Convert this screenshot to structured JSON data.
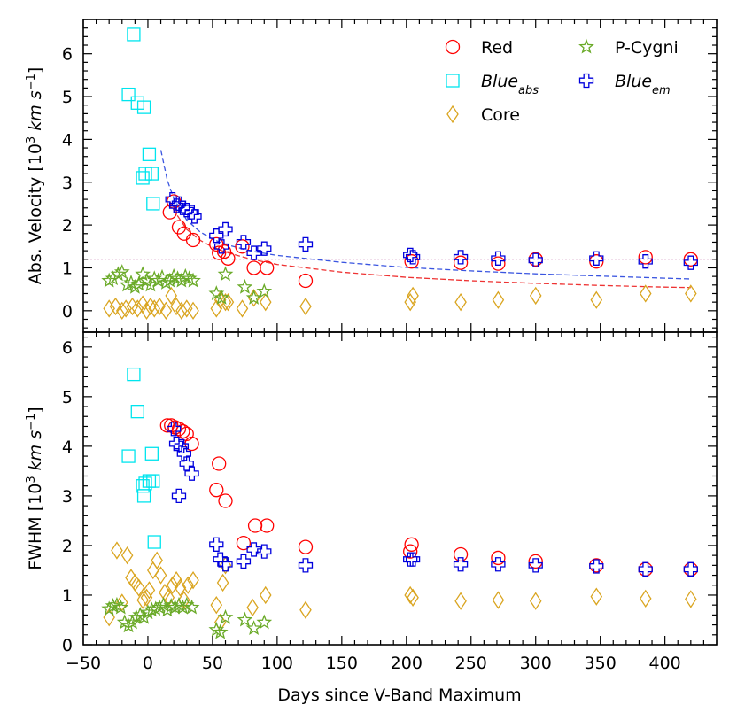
{
  "chart_data": [
    {
      "type": "scatter",
      "panel": "top",
      "ylabel": "Abs. Velocity [10³ km s⁻¹]",
      "ylabel_parts": {
        "pre": "Abs. Velocity [10",
        "exp1": "3",
        "mid": " km s",
        "exp2": "−1",
        "post": "]"
      },
      "xlim": [
        -50,
        440
      ],
      "ylim": [
        -0.5,
        6.8
      ],
      "y_ticks": [
        0,
        1,
        2,
        3,
        4,
        5,
        6
      ],
      "reference_line_y": 1.2,
      "series": [
        {
          "name": "Red",
          "color": "#ff0000",
          "marker": "circle",
          "x": [
            17,
            20,
            24,
            28,
            35,
            53,
            55,
            59,
            62,
            73,
            82,
            92,
            122,
            204,
            242,
            271,
            300,
            347,
            385,
            420
          ],
          "y": [
            2.3,
            2.55,
            1.95,
            1.8,
            1.65,
            1.55,
            1.35,
            1.38,
            1.22,
            1.5,
            1.0,
            1.0,
            0.7,
            1.15,
            1.12,
            1.1,
            1.2,
            1.15,
            1.25,
            1.2
          ]
        },
        {
          "name": "Blue_abs",
          "color": "#00e5ee",
          "marker": "square",
          "x": [
            -11,
            -15,
            -8,
            -3,
            -4,
            -2,
            1,
            3,
            4
          ],
          "y": [
            6.45,
            5.05,
            4.85,
            4.75,
            3.1,
            3.2,
            3.65,
            3.2,
            2.5
          ]
        },
        {
          "name": "Core",
          "color": "#daa520",
          "marker": "diamond",
          "x": [
            -30,
            -25,
            -20,
            -17,
            -12,
            -8,
            -4,
            -1,
            2,
            5,
            9,
            14,
            18,
            22,
            26,
            30,
            35,
            53,
            56,
            60,
            62,
            73,
            82,
            91,
            122,
            203,
            205,
            242,
            271,
            300,
            347,
            385,
            420
          ],
          "y": [
            0.05,
            0.1,
            0.0,
            0.05,
            0.1,
            0.05,
            0.15,
            0.0,
            0.1,
            0.05,
            0.1,
            0.0,
            0.35,
            0.1,
            0.0,
            0.05,
            0.0,
            0.05,
            0.25,
            0.2,
            0.2,
            0.05,
            0.3,
            0.2,
            0.1,
            0.2,
            0.35,
            0.2,
            0.25,
            0.35,
            0.25,
            0.4,
            0.4
          ]
        },
        {
          "name": "P-Cygni",
          "color": "#6aaa28",
          "marker": "star",
          "x": [
            -30,
            -27,
            -23,
            -20,
            -16,
            -13,
            -10,
            -7,
            -4,
            -1,
            2,
            5,
            8,
            11,
            14,
            17,
            20,
            23,
            26,
            29,
            32,
            35,
            53,
            57,
            60,
            75,
            82,
            90
          ],
          "y": [
            0.7,
            0.75,
            0.85,
            0.9,
            0.6,
            0.65,
            0.55,
            0.62,
            0.85,
            0.7,
            0.6,
            0.75,
            0.7,
            0.78,
            0.65,
            0.7,
            0.8,
            0.75,
            0.7,
            0.8,
            0.75,
            0.7,
            0.4,
            0.3,
            0.85,
            0.55,
            0.3,
            0.45
          ]
        },
        {
          "name": "Blue_em",
          "color": "#0000dd",
          "marker": "plus",
          "x": [
            19,
            22,
            24,
            27,
            30,
            34,
            36,
            53,
            57,
            60,
            74,
            82,
            90,
            122,
            203,
            205,
            242,
            271,
            300,
            347,
            385,
            420
          ],
          "y": [
            2.6,
            2.45,
            2.5,
            2.4,
            2.35,
            2.3,
            2.2,
            1.75,
            1.5,
            1.9,
            1.6,
            1.35,
            1.45,
            1.55,
            1.3,
            1.25,
            1.25,
            1.22,
            1.18,
            1.22,
            1.15,
            1.12
          ]
        }
      ],
      "fit_curves": [
        {
          "name": "Blue_em fit",
          "color": "#3a55e0",
          "x": [
            10,
            15,
            20,
            30,
            40,
            50,
            60,
            80,
            100,
            150,
            200,
            250,
            300,
            350,
            400,
            420
          ],
          "y": [
            3.75,
            3.05,
            2.62,
            2.12,
            1.85,
            1.67,
            1.55,
            1.39,
            1.29,
            1.13,
            1.01,
            0.93,
            0.86,
            0.81,
            0.76,
            0.74
          ]
        },
        {
          "name": "Red fit",
          "color": "#ee3333",
          "x": [
            17,
            20,
            30,
            40,
            50,
            60,
            80,
            100,
            150,
            200,
            250,
            300,
            350,
            400,
            420
          ],
          "y": [
            2.55,
            2.35,
            1.9,
            1.65,
            1.49,
            1.37,
            1.2,
            1.08,
            0.9,
            0.78,
            0.7,
            0.64,
            0.59,
            0.55,
            0.54
          ]
        }
      ],
      "legend": [
        {
          "key": "red",
          "label": "Red"
        },
        {
          "key": "blue_abs",
          "label_main": "Blue",
          "label_sub": "abs"
        },
        {
          "key": "core",
          "label": "Core"
        },
        {
          "key": "pcygni",
          "label": "P-Cygni"
        },
        {
          "key": "blue_em",
          "label_main": "Blue",
          "label_sub": "em"
        }
      ]
    },
    {
      "type": "scatter",
      "panel": "bottom",
      "ylabel": "FWHM [10³ km s⁻¹]",
      "ylabel_parts": {
        "pre": "FWHM [10",
        "exp1": "3",
        "mid": " km s",
        "exp2": "−1",
        "post": "]"
      },
      "xlabel": "Days since V-Band Maximum",
      "xlim": [
        -50,
        440
      ],
      "ylim": [
        0,
        6.3
      ],
      "x_ticks": [
        -50,
        0,
        50,
        100,
        150,
        200,
        250,
        300,
        350,
        400
      ],
      "y_ticks": [
        0,
        1,
        2,
        3,
        4,
        5,
        6
      ],
      "series": [
        {
          "name": "Red",
          "color": "#ff0000",
          "marker": "circle",
          "x": [
            15,
            18,
            21,
            24,
            27,
            30,
            34,
            53,
            55,
            60,
            74,
            83,
            92,
            122,
            203,
            204,
            242,
            271,
            300,
            347,
            385,
            420
          ],
          "y": [
            4.42,
            4.42,
            4.38,
            4.35,
            4.3,
            4.25,
            4.05,
            3.12,
            3.65,
            2.9,
            2.05,
            2.4,
            2.4,
            1.97,
            1.88,
            2.02,
            1.82,
            1.75,
            1.68,
            1.6,
            1.52,
            1.52
          ]
        },
        {
          "name": "Blue_abs",
          "color": "#00e5ee",
          "marker": "square",
          "x": [
            -11,
            -15,
            -8,
            -3,
            -4,
            -2,
            1,
            3,
            4,
            5
          ],
          "y": [
            5.45,
            3.8,
            4.7,
            3.0,
            3.2,
            3.25,
            3.3,
            3.85,
            3.3,
            2.07
          ]
        },
        {
          "name": "Core",
          "color": "#daa520",
          "marker": "diamond",
          "x": [
            -30,
            -24,
            -20,
            -16,
            -13,
            -10,
            -7,
            -4,
            -1,
            1,
            4,
            7,
            10,
            13,
            16,
            19,
            22,
            25,
            28,
            31,
            35,
            53,
            56,
            58,
            60,
            81,
            91,
            122,
            203,
            205,
            242,
            271,
            300,
            347,
            385,
            420
          ],
          "y": [
            0.55,
            1.9,
            0.85,
            1.8,
            1.35,
            1.25,
            1.15,
            0.9,
            0.95,
            1.1,
            1.5,
            1.7,
            1.4,
            1.05,
            0.95,
            1.2,
            1.3,
            1.15,
            0.9,
            1.2,
            1.3,
            0.8,
            0.45,
            1.25,
            1.6,
            0.75,
            1.0,
            0.7,
            1.0,
            0.95,
            0.88,
            0.9,
            0.88,
            0.97,
            0.93,
            0.92
          ]
        },
        {
          "name": "P-Cygni",
          "color": "#6aaa28",
          "marker": "star",
          "x": [
            -30,
            -27,
            -24,
            -21,
            -18,
            -15,
            -12,
            -9,
            -6,
            -3,
            0,
            3,
            6,
            9,
            12,
            15,
            18,
            21,
            24,
            27,
            30,
            34,
            53,
            56,
            60,
            75,
            82,
            90
          ],
          "y": [
            0.72,
            0.78,
            0.8,
            0.75,
            0.45,
            0.38,
            0.45,
            0.55,
            0.6,
            0.55,
            0.65,
            0.7,
            0.72,
            0.75,
            0.8,
            0.7,
            0.78,
            0.75,
            0.8,
            0.75,
            0.8,
            0.75,
            0.3,
            0.25,
            0.55,
            0.5,
            0.33,
            0.45
          ]
        },
        {
          "name": "Blue_em",
          "color": "#0000dd",
          "marker": "plus",
          "x": [
            20,
            22,
            24,
            26,
            28,
            30,
            34,
            53,
            56,
            60,
            74,
            82,
            90,
            122,
            203,
            205,
            242,
            271,
            300,
            347,
            385,
            420
          ],
          "y": [
            4.35,
            4.05,
            3.0,
            4.0,
            3.85,
            3.65,
            3.45,
            2.02,
            1.72,
            1.62,
            1.68,
            1.92,
            1.88,
            1.6,
            1.72,
            1.72,
            1.62,
            1.62,
            1.6,
            1.58,
            1.52,
            1.52
          ]
        }
      ]
    }
  ]
}
